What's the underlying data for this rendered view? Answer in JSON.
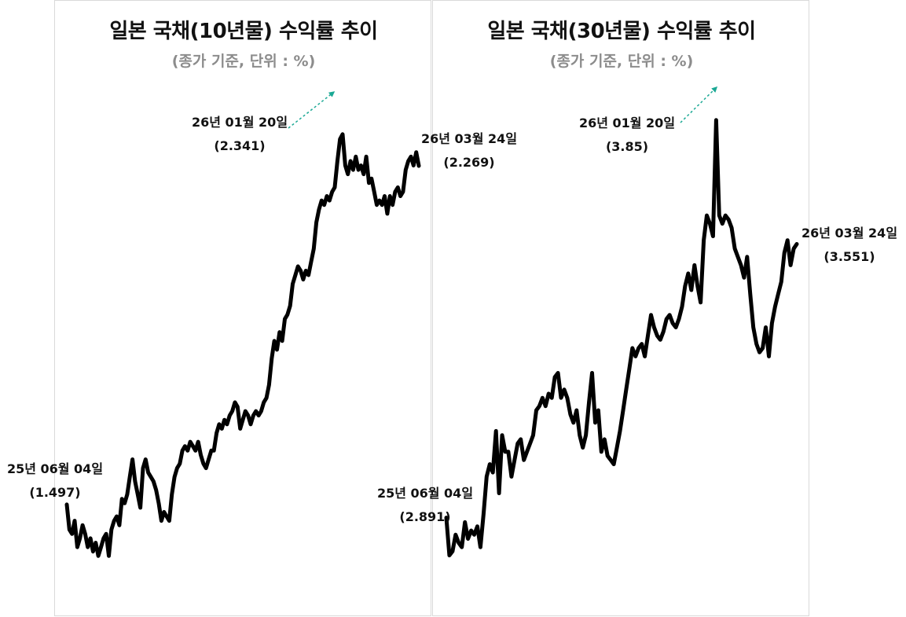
{
  "chart_data": [
    {
      "type": "line",
      "title": "일본 국채(10년물) 수익률 추이",
      "subtitle": "(종가 기준, 단위 : %)",
      "color": "#000000",
      "arrow_color": "#1aa894",
      "ylim": [
        1.35,
        2.45
      ],
      "series": [
        {
          "values": [
            1.497,
            1.44,
            1.43,
            1.46,
            1.4,
            1.42,
            1.45,
            1.43,
            1.4,
            1.42,
            1.39,
            1.41,
            1.38,
            1.4,
            1.42,
            1.43,
            1.38,
            1.44,
            1.46,
            1.47,
            1.45,
            1.51,
            1.5,
            1.52,
            1.56,
            1.6,
            1.55,
            1.52,
            1.49,
            1.58,
            1.6,
            1.57,
            1.56,
            1.55,
            1.53,
            1.5,
            1.46,
            1.48,
            1.47,
            1.46,
            1.52,
            1.56,
            1.58,
            1.59,
            1.62,
            1.63,
            1.62,
            1.64,
            1.63,
            1.62,
            1.64,
            1.61,
            1.59,
            1.58,
            1.6,
            1.62,
            1.62,
            1.66,
            1.68,
            1.67,
            1.69,
            1.68,
            1.7,
            1.71,
            1.73,
            1.72,
            1.67,
            1.69,
            1.71,
            1.7,
            1.68,
            1.7,
            1.71,
            1.7,
            1.71,
            1.73,
            1.74,
            1.77,
            1.83,
            1.87,
            1.85,
            1.89,
            1.87,
            1.92,
            1.93,
            1.95,
            2.0,
            2.02,
            2.04,
            2.03,
            2.01,
            2.03,
            2.02,
            2.05,
            2.08,
            2.14,
            2.17,
            2.19,
            2.18,
            2.2,
            2.19,
            2.21,
            2.22,
            2.28,
            2.33,
            2.341,
            2.27,
            2.25,
            2.28,
            2.26,
            2.29,
            2.26,
            2.27,
            2.25,
            2.29,
            2.23,
            2.24,
            2.21,
            2.18,
            2.19,
            2.18,
            2.2,
            2.16,
            2.2,
            2.18,
            2.21,
            2.22,
            2.2,
            2.21,
            2.26,
            2.28,
            2.29,
            2.27,
            2.3,
            2.269
          ]
        }
      ],
      "annotations": [
        {
          "date": "25년 06월 04일",
          "value": "(1.497)"
        },
        {
          "date": "26년 01월 20일",
          "value": "(2.341)"
        },
        {
          "date": "26년 03월 24일",
          "value": "(2.269)"
        }
      ]
    },
    {
      "type": "line",
      "title": "일본 국채(30년물) 수익률 추이",
      "subtitle": "(종가 기준, 단위 : %)",
      "color": "#000000",
      "arrow_color": "#1aa894",
      "ylim": [
        2.75,
        3.95
      ],
      "series": [
        {
          "values": [
            2.891,
            2.8,
            2.81,
            2.85,
            2.83,
            2.82,
            2.88,
            2.84,
            2.86,
            2.85,
            2.87,
            2.82,
            2.9,
            2.99,
            3.02,
            3.0,
            3.1,
            2.95,
            3.09,
            3.05,
            3.05,
            2.99,
            3.03,
            3.07,
            3.08,
            3.03,
            3.05,
            3.07,
            3.09,
            3.15,
            3.16,
            3.18,
            3.16,
            3.19,
            3.18,
            3.23,
            3.24,
            3.18,
            3.2,
            3.18,
            3.14,
            3.12,
            3.15,
            3.09,
            3.06,
            3.09,
            3.17,
            3.24,
            3.12,
            3.15,
            3.05,
            3.08,
            3.04,
            3.03,
            3.02,
            3.06,
            3.1,
            3.15,
            3.2,
            3.25,
            3.3,
            3.28,
            3.3,
            3.31,
            3.28,
            3.33,
            3.38,
            3.35,
            3.33,
            3.32,
            3.34,
            3.37,
            3.38,
            3.36,
            3.35,
            3.37,
            3.4,
            3.45,
            3.48,
            3.44,
            3.5,
            3.45,
            3.41,
            3.56,
            3.62,
            3.6,
            3.57,
            3.85,
            3.62,
            3.6,
            3.62,
            3.61,
            3.59,
            3.54,
            3.52,
            3.5,
            3.47,
            3.52,
            3.43,
            3.35,
            3.31,
            3.29,
            3.3,
            3.35,
            3.28,
            3.36,
            3.4,
            3.43,
            3.46,
            3.53,
            3.56,
            3.5,
            3.54,
            3.551
          ]
        }
      ],
      "annotations": [
        {
          "date": "25년 06월 04일",
          "value": "(2.891)"
        },
        {
          "date": "26년 01월 20일",
          "value": "(3.85)"
        },
        {
          "date": "26년 03월 24일",
          "value": "(3.551)"
        }
      ]
    }
  ]
}
